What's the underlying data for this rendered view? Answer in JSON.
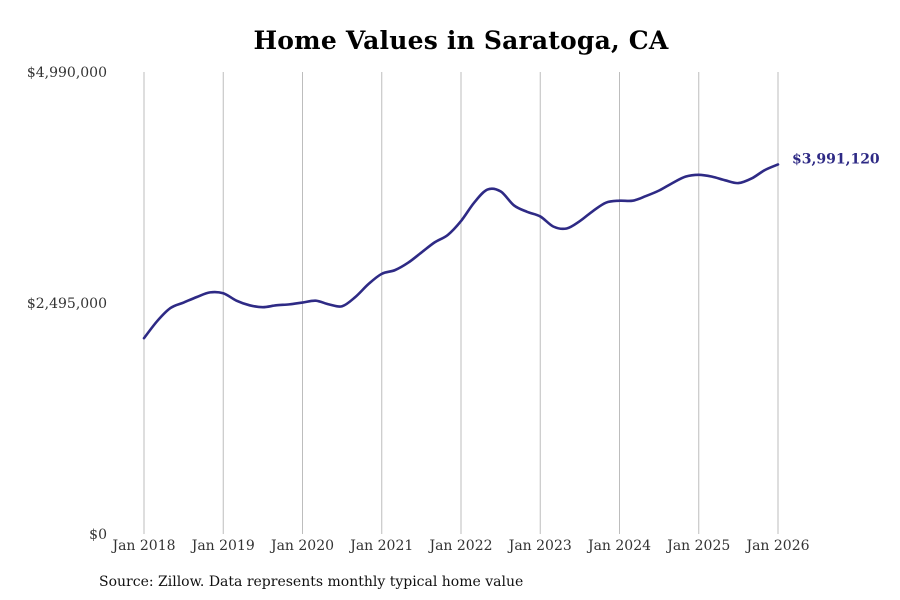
{
  "chart_data": {
    "type": "line",
    "title": "Home Values in Saratoga, CA",
    "xlabel": "",
    "ylabel": "",
    "ylim": [
      0,
      4990000
    ],
    "y_ticks": [
      0,
      2495000,
      4990000
    ],
    "y_tick_labels": [
      "$0",
      "$2,495,000",
      "$4,990,000"
    ],
    "x_range": [
      2018.0,
      2026.0
    ],
    "x_ticks": [
      2018,
      2019,
      2020,
      2021,
      2022,
      2023,
      2024,
      2025,
      2026
    ],
    "x_tick_labels": [
      "Jan 2018",
      "Jan 2019",
      "Jan 2020",
      "Jan 2021",
      "Jan 2022",
      "Jan 2023",
      "Jan 2024",
      "Jan 2025",
      "Jan 2026"
    ],
    "grid": "vertical",
    "line_color": "#2e2a85",
    "grid_color": "#bdbdbd",
    "end_label": "$3,991,120",
    "series": [
      {
        "name": "Typical home value",
        "x": [
          2018.0,
          2018.167,
          2018.333,
          2018.5,
          2018.667,
          2018.833,
          2019.0,
          2019.167,
          2019.333,
          2019.5,
          2019.667,
          2019.833,
          2020.0,
          2020.167,
          2020.333,
          2020.5,
          2020.667,
          2020.833,
          2021.0,
          2021.167,
          2021.333,
          2021.5,
          2021.667,
          2021.833,
          2022.0,
          2022.167,
          2022.333,
          2022.5,
          2022.667,
          2022.833,
          2023.0,
          2023.167,
          2023.333,
          2023.5,
          2023.667,
          2023.833,
          2024.0,
          2024.167,
          2024.333,
          2024.5,
          2024.667,
          2024.833,
          2025.0,
          2025.167,
          2025.333,
          2025.5,
          2025.667,
          2025.833,
          2026.0
        ],
        "values": [
          2115000,
          2300000,
          2440000,
          2500000,
          2560000,
          2610000,
          2600000,
          2520000,
          2470000,
          2450000,
          2470000,
          2480000,
          2500000,
          2520000,
          2480000,
          2460000,
          2560000,
          2700000,
          2810000,
          2850000,
          2930000,
          3040000,
          3150000,
          3230000,
          3380000,
          3580000,
          3720000,
          3700000,
          3550000,
          3480000,
          3430000,
          3320000,
          3300000,
          3380000,
          3490000,
          3580000,
          3600000,
          3600000,
          3650000,
          3710000,
          3790000,
          3860000,
          3880000,
          3860000,
          3820000,
          3790000,
          3840000,
          3930000,
          3991120
        ]
      }
    ]
  },
  "source_note": "Source: Zillow. Data represents monthly typical home value"
}
